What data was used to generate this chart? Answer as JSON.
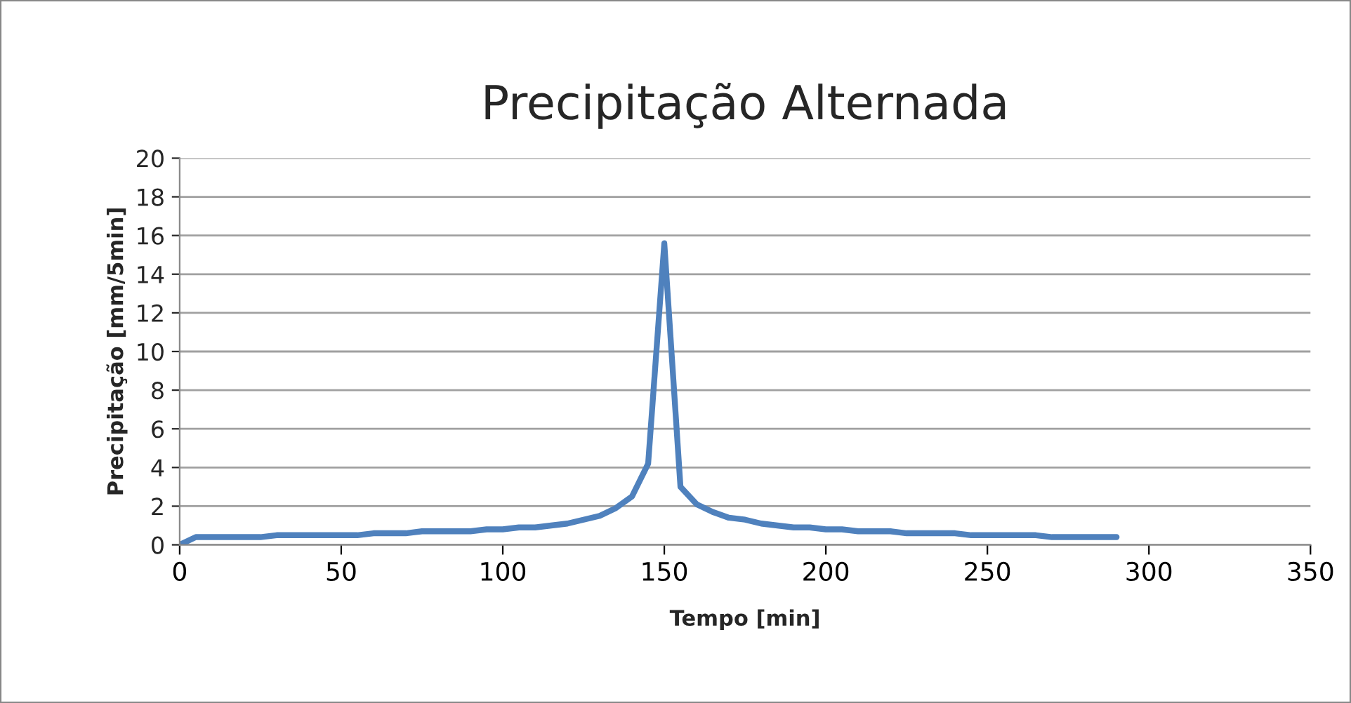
{
  "chart_data": {
    "type": "line",
    "title": "Precipitação Alternada",
    "xlabel": "Tempo [min]",
    "ylabel": "Precipitação [mm/5min]",
    "x": [
      0,
      5,
      10,
      15,
      20,
      25,
      30,
      35,
      40,
      45,
      50,
      55,
      60,
      65,
      70,
      75,
      80,
      85,
      90,
      95,
      100,
      105,
      110,
      115,
      120,
      125,
      130,
      135,
      140,
      145,
      150,
      155,
      160,
      165,
      170,
      175,
      180,
      185,
      190,
      195,
      200,
      205,
      210,
      215,
      220,
      225,
      230,
      235,
      240,
      245,
      250,
      255,
      260,
      265,
      270,
      275,
      280,
      285,
      290
    ],
    "series": [
      {
        "color": "#4f81bd",
        "values": [
          0.0,
          0.4,
          0.4,
          0.4,
          0.4,
          0.4,
          0.5,
          0.5,
          0.5,
          0.5,
          0.5,
          0.5,
          0.6,
          0.6,
          0.6,
          0.7,
          0.7,
          0.7,
          0.7,
          0.8,
          0.8,
          0.9,
          0.9,
          1.0,
          1.1,
          1.3,
          1.5,
          1.9,
          2.5,
          4.2,
          15.6,
          3.0,
          2.1,
          1.7,
          1.4,
          1.3,
          1.1,
          1.0,
          0.9,
          0.9,
          0.8,
          0.8,
          0.7,
          0.7,
          0.7,
          0.6,
          0.6,
          0.6,
          0.6,
          0.5,
          0.5,
          0.5,
          0.5,
          0.5,
          0.4,
          0.4,
          0.4,
          0.4,
          0.4
        ]
      }
    ],
    "xlim": [
      0,
      350
    ],
    "xticks": [
      0,
      50,
      100,
      150,
      200,
      250,
      300,
      350
    ],
    "ylim": [
      0,
      20
    ],
    "yticks": [
      0,
      2,
      4,
      6,
      8,
      10,
      12,
      14,
      16,
      18,
      20
    ],
    "grid": "y",
    "marker": "none",
    "line_style": "solid"
  }
}
